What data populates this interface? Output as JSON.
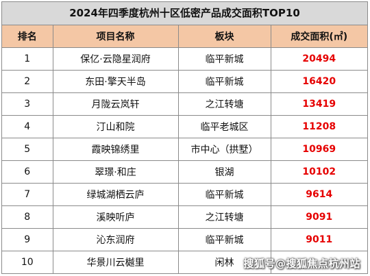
{
  "title": "2024年四季度杭州十区低密产品成交面积TOP10",
  "headers": {
    "rank": "排名",
    "project": "项目名称",
    "district": "板块",
    "area": "成交面积(㎡)"
  },
  "rows": [
    {
      "rank": "1",
      "project": "保亿·云隐星润府",
      "district": "临平新城",
      "area": "20494"
    },
    {
      "rank": "2",
      "project": "东田·擎天半岛",
      "district": "临平新城",
      "area": "16420"
    },
    {
      "rank": "3",
      "project": "月陇云岚轩",
      "district": "之江转塘",
      "area": "13419"
    },
    {
      "rank": "4",
      "project": "汀山和院",
      "district": "临平老城区",
      "area": "11208"
    },
    {
      "rank": "5",
      "project": "霞映锦绣里",
      "district": "市中心（拱墅）",
      "area": "10969"
    },
    {
      "rank": "6",
      "project": "翠璟·和庄",
      "district": "银湖",
      "area": "10102"
    },
    {
      "rank": "7",
      "project": "绿城湖栖云庐",
      "district": "临平新城",
      "area": "9614"
    },
    {
      "rank": "8",
      "project": "溪映听庐",
      "district": "之江转塘",
      "area": "9091"
    },
    {
      "rank": "9",
      "project": "沁东润府",
      "district": "临平新城",
      "area": "9011"
    },
    {
      "rank": "10",
      "project": "华景川云樾里",
      "district": "闲林",
      "area": ""
    }
  ],
  "watermark": "搜狐号@搜狐焦点杭州站",
  "colors": {
    "title_bg": "#d9d9d9",
    "header_bg": "#f4c7a5",
    "area_text": "#e60000",
    "border": "#8a8a8a"
  }
}
